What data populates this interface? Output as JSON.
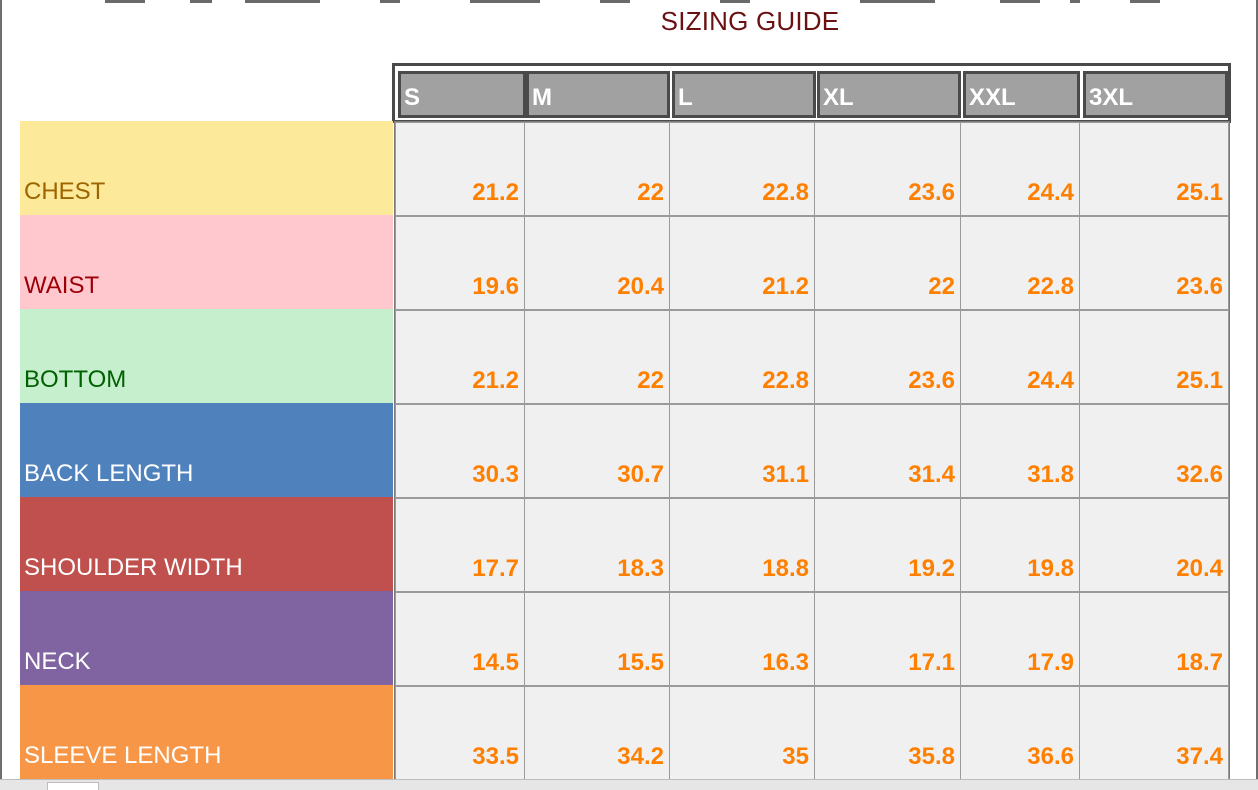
{
  "title": "SIZING GUIDE",
  "sizes": [
    "S",
    "M",
    "L",
    "XL",
    "XXL",
    "3XL"
  ],
  "rows": [
    {
      "label": "CHEST",
      "bg": "#fde99a",
      "fg": "#9c6500",
      "values": [
        "21.2",
        "22",
        "22.8",
        "23.6",
        "24.4",
        "25.1"
      ]
    },
    {
      "label": "WAIST",
      "bg": "#ffc7ce",
      "fg": "#9c0006",
      "values": [
        "19.6",
        "20.4",
        "21.2",
        "22",
        "22.8",
        "23.6"
      ]
    },
    {
      "label": "BOTTOM",
      "bg": "#c6efce",
      "fg": "#006100",
      "values": [
        "21.2",
        "22",
        "22.8",
        "23.6",
        "24.4",
        "25.1"
      ]
    },
    {
      "label": "BACK LENGTH",
      "bg": "#4f81bd",
      "fg": "#ffffff",
      "values": [
        "30.3",
        "30.7",
        "31.1",
        "31.4",
        "31.8",
        "32.6"
      ]
    },
    {
      "label": "SHOULDER WIDTH",
      "bg": "#c0504d",
      "fg": "#ffffff",
      "values": [
        "17.7",
        "18.3",
        "18.8",
        "19.2",
        "19.8",
        "20.4"
      ]
    },
    {
      "label": "NECK",
      "bg": "#8064a2",
      "fg": "#ffffff",
      "values": [
        "14.5",
        "15.5",
        "16.3",
        "17.1",
        "17.9",
        "18.7"
      ]
    },
    {
      "label": "SLEEVE LENGTH",
      "bg": "#f79646",
      "fg": "#ffffff",
      "values": [
        "33.5",
        "34.2",
        "35",
        "35.8",
        "36.6",
        "37.4"
      ]
    }
  ],
  "colors": {
    "value_text": "#ff7f00",
    "title_text": "#6b1111",
    "header_fill": "#a1a1a1"
  }
}
